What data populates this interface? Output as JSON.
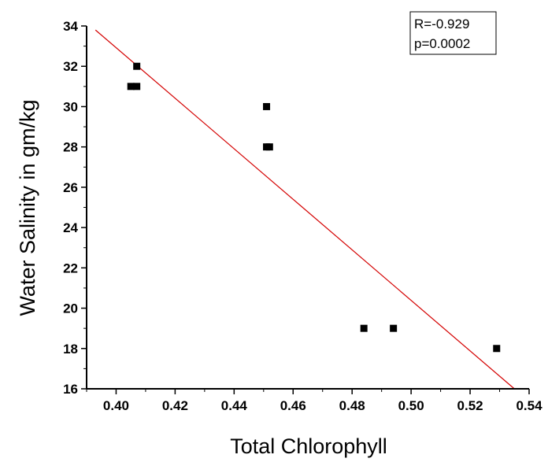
{
  "chart_data": {
    "type": "scatter",
    "xlabel": "Total Chlorophyll",
    "ylabel": "Water Salinity in gm/kg",
    "xlim": [
      0.39,
      0.54
    ],
    "ylim": [
      16,
      34
    ],
    "x_ticks": [
      "0.40",
      "0.42",
      "0.44",
      "0.46",
      "0.48",
      "0.50",
      "0.52",
      "0.54"
    ],
    "y_ticks": [
      "16",
      "18",
      "20",
      "22",
      "24",
      "26",
      "28",
      "30",
      "32",
      "34"
    ],
    "grid": false,
    "legend": "none",
    "series": [
      {
        "points": [
          {
            "x": 0.407,
            "y": 32
          },
          {
            "x": 0.405,
            "y": 31
          },
          {
            "x": 0.407,
            "y": 31
          },
          {
            "x": 0.451,
            "y": 30
          },
          {
            "x": 0.451,
            "y": 28
          },
          {
            "x": 0.452,
            "y": 28
          },
          {
            "x": 0.484,
            "y": 19
          },
          {
            "x": 0.494,
            "y": 19
          },
          {
            "x": 0.529,
            "y": 18
          }
        ],
        "color": "#000000",
        "marker": "square"
      }
    ],
    "fit_line": {
      "points": [
        {
          "x": 0.393,
          "y": 33.8
        },
        {
          "x": 0.535,
          "y": 16.0
        }
      ],
      "color": "#d40000"
    },
    "annotation": {
      "lines": [
        "R=-0.929",
        "p=0.0002"
      ],
      "position": "top-right"
    }
  }
}
